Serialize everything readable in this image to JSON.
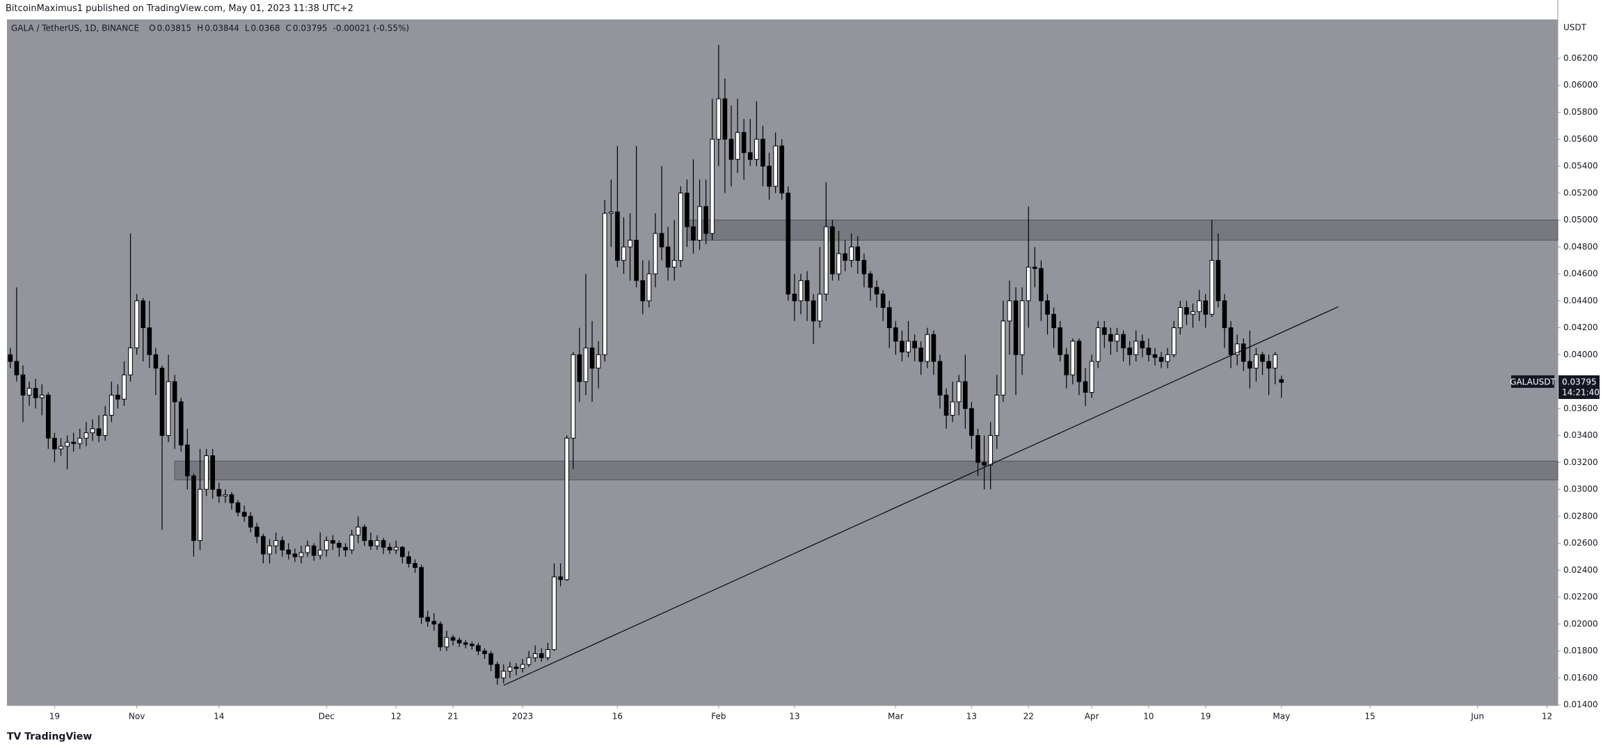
{
  "header": {
    "publisher": "BitcoinMaximus1 published on TradingView.com, May 01, 2023 11:38 UTC+2",
    "footer": "TradingView"
  },
  "chart_data": {
    "type": "candlestick",
    "title": "GALA / TetherUS, 1D, BINANCE",
    "ohlc_labels": [
      "O",
      "H",
      "L",
      "C"
    ],
    "change": "-0.00021 (-0.55%)",
    "y_axis_label": "USDT",
    "symbol": "GALAUSDT",
    "countdown": "14:21:40",
    "up_color": "#ffffff",
    "down_color": "#000000",
    "background": "#93959d",
    "ylim": [
      0.01395,
      0.06489
    ],
    "yticks": [
      {
        "value": 0.014,
        "label": "0.01400"
      },
      {
        "value": 0.016,
        "label": "0.01600"
      },
      {
        "value": 0.018,
        "label": "0.01800"
      },
      {
        "value": 0.02,
        "label": "0.02000"
      },
      {
        "value": 0.022,
        "label": "0.02200"
      },
      {
        "value": 0.024,
        "label": "0.02400"
      },
      {
        "value": 0.026,
        "label": "0.02600"
      },
      {
        "value": 0.028,
        "label": "0.02800"
      },
      {
        "value": 0.03,
        "label": "0.03000"
      },
      {
        "value": 0.032,
        "label": "0.03200"
      },
      {
        "value": 0.034,
        "label": "0.03400"
      },
      {
        "value": 0.036,
        "label": "0.03600"
      },
      {
        "value": 0.038,
        "label": "0.03800"
      },
      {
        "value": 0.04,
        "label": "0.04000"
      },
      {
        "value": 0.042,
        "label": "0.04200"
      },
      {
        "value": 0.044,
        "label": "0.04400"
      },
      {
        "value": 0.046,
        "label": "0.04600"
      },
      {
        "value": 0.048,
        "label": "0.04800"
      },
      {
        "value": 0.05,
        "label": "0.05000"
      },
      {
        "value": 0.052,
        "label": "0.05200"
      },
      {
        "value": 0.054,
        "label": "0.05400"
      },
      {
        "value": 0.056,
        "label": "0.05600"
      },
      {
        "value": 0.058,
        "label": "0.05800"
      },
      {
        "value": 0.06,
        "label": "0.06000"
      },
      {
        "value": 0.062,
        "label": "0.06200"
      }
    ],
    "xlim": [
      -0.53,
      244.7
    ],
    "xticks": [
      {
        "value": 7,
        "label": "19"
      },
      {
        "value": 20,
        "label": "Nov"
      },
      {
        "value": 33,
        "label": "14"
      },
      {
        "value": 50,
        "label": "Dec"
      },
      {
        "value": 61,
        "label": "12"
      },
      {
        "value": 70,
        "label": "21"
      },
      {
        "value": 81,
        "label": "2023"
      },
      {
        "value": 96,
        "label": "16"
      },
      {
        "value": 112,
        "label": "Feb"
      },
      {
        "value": 124,
        "label": "13"
      },
      {
        "value": 140,
        "label": "Mar"
      },
      {
        "value": 152,
        "label": "13"
      },
      {
        "value": 161,
        "label": "22"
      },
      {
        "value": 171,
        "label": "Apr"
      },
      {
        "value": 180,
        "label": "10"
      },
      {
        "value": 189,
        "label": "19"
      },
      {
        "value": 201,
        "label": "May"
      },
      {
        "value": 215,
        "label": "15"
      },
      {
        "value": 232,
        "label": "Jun"
      },
      {
        "value": 243,
        "label": "12"
      }
    ],
    "zones": [
      {
        "x0": 26,
        "y0": 0.0307,
        "y1": 0.0321
      },
      {
        "x0": 107,
        "y0": 0.0485,
        "y1": 0.05
      }
    ],
    "trendline": {
      "x": [
        78,
        210
      ],
      "y": [
        0.01545,
        0.04356
      ]
    },
    "ohlc": [
      [
        0.04,
        0.0405,
        0.039,
        0.0395
      ],
      [
        0.0395,
        0.045,
        0.038,
        0.0385
      ],
      [
        0.0385,
        0.0392,
        0.035,
        0.037
      ],
      [
        0.037,
        0.038,
        0.0362,
        0.0375
      ],
      [
        0.0375,
        0.0382,
        0.036,
        0.0368
      ],
      [
        0.0368,
        0.0378,
        0.0355,
        0.037
      ],
      [
        0.037,
        0.0372,
        0.033,
        0.0338
      ],
      [
        0.0338,
        0.0342,
        0.032,
        0.033
      ],
      [
        0.033,
        0.0338,
        0.0325,
        0.0332
      ],
      [
        0.0332,
        0.034,
        0.0315,
        0.0335
      ],
      [
        0.0335,
        0.0342,
        0.0328,
        0.0334
      ],
      [
        0.0334,
        0.0345,
        0.033,
        0.0338
      ],
      [
        0.0338,
        0.035,
        0.0332,
        0.0342
      ],
      [
        0.0342,
        0.0352,
        0.0336,
        0.0345
      ],
      [
        0.0345,
        0.0355,
        0.0335,
        0.034
      ],
      [
        0.034,
        0.0362,
        0.0336,
        0.0355
      ],
      [
        0.0355,
        0.038,
        0.035,
        0.037
      ],
      [
        0.037,
        0.0378,
        0.036,
        0.0367
      ],
      [
        0.0367,
        0.0395,
        0.0362,
        0.0385
      ],
      [
        0.0385,
        0.049,
        0.038,
        0.0405
      ],
      [
        0.0405,
        0.0445,
        0.04,
        0.044
      ],
      [
        0.044,
        0.0442,
        0.0395,
        0.042
      ],
      [
        0.042,
        0.044,
        0.039,
        0.04
      ],
      [
        0.04,
        0.0405,
        0.037,
        0.039
      ],
      [
        0.039,
        0.0392,
        0.027,
        0.034
      ],
      [
        0.034,
        0.04,
        0.0335,
        0.038
      ],
      [
        0.038,
        0.0385,
        0.033,
        0.0365
      ],
      [
        0.0365,
        0.0368,
        0.0328,
        0.0333
      ],
      [
        0.0333,
        0.0345,
        0.03,
        0.031
      ],
      [
        0.031,
        0.0312,
        0.025,
        0.0262
      ],
      [
        0.0262,
        0.033,
        0.0255,
        0.03
      ],
      [
        0.03,
        0.033,
        0.0295,
        0.0325
      ],
      [
        0.0325,
        0.033,
        0.0293,
        0.03
      ],
      [
        0.03,
        0.0305,
        0.029,
        0.0295
      ],
      [
        0.0295,
        0.03,
        0.029,
        0.0296
      ],
      [
        0.0296,
        0.0298,
        0.0285,
        0.029
      ],
      [
        0.029,
        0.0292,
        0.028,
        0.0283
      ],
      [
        0.0283,
        0.0288,
        0.0276,
        0.028
      ],
      [
        0.028,
        0.0283,
        0.0268,
        0.0272
      ],
      [
        0.0272,
        0.0275,
        0.026,
        0.0265
      ],
      [
        0.0265,
        0.0267,
        0.0245,
        0.0252
      ],
      [
        0.0252,
        0.0263,
        0.0245,
        0.0258
      ],
      [
        0.0258,
        0.0268,
        0.0252,
        0.0262
      ],
      [
        0.0262,
        0.0265,
        0.025,
        0.0255
      ],
      [
        0.0255,
        0.026,
        0.0248,
        0.0252
      ],
      [
        0.0252,
        0.0256,
        0.0246,
        0.025
      ],
      [
        0.025,
        0.0258,
        0.0245,
        0.0253
      ],
      [
        0.0253,
        0.0262,
        0.025,
        0.0258
      ],
      [
        0.0258,
        0.026,
        0.0247,
        0.0251
      ],
      [
        0.0251,
        0.0268,
        0.0248,
        0.0255
      ],
      [
        0.0255,
        0.0265,
        0.025,
        0.0262
      ],
      [
        0.0262,
        0.0266,
        0.0255,
        0.026
      ],
      [
        0.026,
        0.0262,
        0.025,
        0.0257
      ],
      [
        0.0257,
        0.026,
        0.025,
        0.0255
      ],
      [
        0.0255,
        0.027,
        0.0252,
        0.0266
      ],
      [
        0.0266,
        0.028,
        0.026,
        0.0272
      ],
      [
        0.0272,
        0.0274,
        0.0258,
        0.0262
      ],
      [
        0.0262,
        0.0268,
        0.0255,
        0.0258
      ],
      [
        0.0258,
        0.0266,
        0.0255,
        0.0262
      ],
      [
        0.0262,
        0.0264,
        0.0252,
        0.0257
      ],
      [
        0.0257,
        0.026,
        0.0252,
        0.0255
      ],
      [
        0.0255,
        0.0262,
        0.0252,
        0.0257
      ],
      [
        0.0257,
        0.0258,
        0.0245,
        0.025
      ],
      [
        0.025,
        0.0254,
        0.0242,
        0.0245
      ],
      [
        0.0245,
        0.0248,
        0.0238,
        0.0242
      ],
      [
        0.0242,
        0.0244,
        0.02,
        0.0205
      ],
      [
        0.0205,
        0.021,
        0.0198,
        0.0202
      ],
      [
        0.0202,
        0.0208,
        0.0195,
        0.02
      ],
      [
        0.02,
        0.0202,
        0.018,
        0.0183
      ],
      [
        0.0183,
        0.0195,
        0.018,
        0.019
      ],
      [
        0.019,
        0.0192,
        0.0184,
        0.0188
      ],
      [
        0.0188,
        0.019,
        0.0183,
        0.0186
      ],
      [
        0.0186,
        0.0188,
        0.0182,
        0.0185
      ],
      [
        0.0185,
        0.0187,
        0.0181,
        0.0184
      ],
      [
        0.0184,
        0.0186,
        0.0177,
        0.018
      ],
      [
        0.018,
        0.0182,
        0.0174,
        0.0178
      ],
      [
        0.0178,
        0.018,
        0.0165,
        0.017
      ],
      [
        0.017,
        0.0172,
        0.0155,
        0.016
      ],
      [
        0.016,
        0.017,
        0.0156,
        0.0165
      ],
      [
        0.0165,
        0.0172,
        0.016,
        0.0168
      ],
      [
        0.0168,
        0.0171,
        0.0162,
        0.0167
      ],
      [
        0.0167,
        0.0174,
        0.0164,
        0.017
      ],
      [
        0.017,
        0.018,
        0.0168,
        0.0175
      ],
      [
        0.0175,
        0.0184,
        0.0172,
        0.0178
      ],
      [
        0.0178,
        0.0182,
        0.0172,
        0.0175
      ],
      [
        0.0175,
        0.0186,
        0.0173,
        0.0181
      ],
      [
        0.0181,
        0.0245,
        0.018,
        0.0235
      ],
      [
        0.0235,
        0.0245,
        0.0228,
        0.0233
      ],
      [
        0.0233,
        0.034,
        0.0232,
        0.0338
      ],
      [
        0.0338,
        0.0402,
        0.0315,
        0.04
      ],
      [
        0.04,
        0.042,
        0.0365,
        0.038
      ],
      [
        0.038,
        0.046,
        0.037,
        0.0405
      ],
      [
        0.0405,
        0.0425,
        0.0365,
        0.039
      ],
      [
        0.039,
        0.041,
        0.0375,
        0.04
      ],
      [
        0.04,
        0.0515,
        0.0395,
        0.0505
      ],
      [
        0.0505,
        0.053,
        0.048,
        0.0506
      ],
      [
        0.0506,
        0.0555,
        0.0465,
        0.047
      ],
      [
        0.047,
        0.0502,
        0.046,
        0.048
      ],
      [
        0.048,
        0.0505,
        0.0455,
        0.0485
      ],
      [
        0.0485,
        0.0555,
        0.045,
        0.0455
      ],
      [
        0.0455,
        0.047,
        0.043,
        0.044
      ],
      [
        0.044,
        0.047,
        0.0435,
        0.046
      ],
      [
        0.046,
        0.0505,
        0.045,
        0.049
      ],
      [
        0.049,
        0.054,
        0.047,
        0.048
      ],
      [
        0.048,
        0.0495,
        0.0455,
        0.0465
      ],
      [
        0.0465,
        0.05,
        0.0455,
        0.047
      ],
      [
        0.047,
        0.0525,
        0.0465,
        0.052
      ],
      [
        0.052,
        0.053,
        0.048,
        0.0495
      ],
      [
        0.0495,
        0.0545,
        0.0475,
        0.0485
      ],
      [
        0.0485,
        0.053,
        0.0478,
        0.051
      ],
      [
        0.051,
        0.053,
        0.0482,
        0.049
      ],
      [
        0.049,
        0.059,
        0.0485,
        0.056
      ],
      [
        0.056,
        0.063,
        0.054,
        0.059
      ],
      [
        0.059,
        0.0605,
        0.052,
        0.056
      ],
      [
        0.056,
        0.0585,
        0.0525,
        0.0545
      ],
      [
        0.0545,
        0.059,
        0.0535,
        0.0565
      ],
      [
        0.0565,
        0.0575,
        0.053,
        0.055
      ],
      [
        0.055,
        0.0575,
        0.054,
        0.0545
      ],
      [
        0.0545,
        0.0588,
        0.054,
        0.056
      ],
      [
        0.056,
        0.057,
        0.0525,
        0.054
      ],
      [
        0.054,
        0.055,
        0.0515,
        0.0525
      ],
      [
        0.0525,
        0.0565,
        0.052,
        0.0555
      ],
      [
        0.0555,
        0.056,
        0.0515,
        0.052
      ],
      [
        0.052,
        0.0525,
        0.044,
        0.0445
      ],
      [
        0.0445,
        0.046,
        0.0425,
        0.044
      ],
      [
        0.044,
        0.046,
        0.043,
        0.0455
      ],
      [
        0.0455,
        0.0462,
        0.0425,
        0.044
      ],
      [
        0.044,
        0.0445,
        0.0408,
        0.0425
      ],
      [
        0.0425,
        0.048,
        0.042,
        0.0445
      ],
      [
        0.0445,
        0.0528,
        0.044,
        0.0495
      ],
      [
        0.0495,
        0.05,
        0.0455,
        0.046
      ],
      [
        0.046,
        0.0492,
        0.0455,
        0.0475
      ],
      [
        0.0475,
        0.0485,
        0.0462,
        0.047
      ],
      [
        0.047,
        0.049,
        0.0465,
        0.048
      ],
      [
        0.048,
        0.0488,
        0.046,
        0.047
      ],
      [
        0.047,
        0.0475,
        0.045,
        0.046
      ],
      [
        0.046,
        0.0462,
        0.044,
        0.045
      ],
      [
        0.045,
        0.0455,
        0.0435,
        0.0445
      ],
      [
        0.0445,
        0.0448,
        0.0425,
        0.0435
      ],
      [
        0.0435,
        0.044,
        0.0405,
        0.042
      ],
      [
        0.042,
        0.0425,
        0.04,
        0.041
      ],
      [
        0.041,
        0.0418,
        0.0395,
        0.0402
      ],
      [
        0.0402,
        0.0425,
        0.0398,
        0.041
      ],
      [
        0.041,
        0.0415,
        0.0395,
        0.0405
      ],
      [
        0.0405,
        0.041,
        0.0385,
        0.0395
      ],
      [
        0.0395,
        0.042,
        0.039,
        0.0415
      ],
      [
        0.0415,
        0.0418,
        0.0385,
        0.0395
      ],
      [
        0.0395,
        0.04,
        0.036,
        0.037
      ],
      [
        0.037,
        0.0375,
        0.0345,
        0.0355
      ],
      [
        0.0355,
        0.038,
        0.035,
        0.0365
      ],
      [
        0.0365,
        0.0385,
        0.0355,
        0.038
      ],
      [
        0.038,
        0.04,
        0.0345,
        0.036
      ],
      [
        0.036,
        0.0365,
        0.033,
        0.034
      ],
      [
        0.034,
        0.0345,
        0.031,
        0.032
      ],
      [
        0.032,
        0.034,
        0.03,
        0.0318
      ],
      [
        0.0318,
        0.035,
        0.03,
        0.034
      ],
      [
        0.034,
        0.0385,
        0.033,
        0.037
      ],
      [
        0.037,
        0.044,
        0.0365,
        0.0425
      ],
      [
        0.0425,
        0.0455,
        0.04,
        0.044
      ],
      [
        0.044,
        0.045,
        0.037,
        0.04
      ],
      [
        0.04,
        0.045,
        0.0385,
        0.044
      ],
      [
        0.044,
        0.051,
        0.042,
        0.0465
      ],
      [
        0.0465,
        0.048,
        0.045,
        0.0464
      ],
      [
        0.0464,
        0.047,
        0.0425,
        0.044
      ],
      [
        0.044,
        0.0445,
        0.0415,
        0.043
      ],
      [
        0.043,
        0.0435,
        0.0405,
        0.042
      ],
      [
        0.042,
        0.0425,
        0.0395,
        0.04
      ],
      [
        0.04,
        0.0405,
        0.0375,
        0.0385
      ],
      [
        0.0385,
        0.0412,
        0.0378,
        0.041
      ],
      [
        0.041,
        0.0412,
        0.037,
        0.038
      ],
      [
        0.038,
        0.039,
        0.0362,
        0.0372
      ],
      [
        0.0372,
        0.04,
        0.0368,
        0.0395
      ],
      [
        0.0395,
        0.0425,
        0.039,
        0.042
      ],
      [
        0.042,
        0.0425,
        0.0405,
        0.0415
      ],
      [
        0.0415,
        0.042,
        0.04,
        0.041
      ],
      [
        0.041,
        0.042,
        0.0402,
        0.0415
      ],
      [
        0.0415,
        0.0418,
        0.0395,
        0.0405
      ],
      [
        0.0405,
        0.041,
        0.0392,
        0.04
      ],
      [
        0.04,
        0.0418,
        0.0395,
        0.041
      ],
      [
        0.041,
        0.0415,
        0.0398,
        0.0405
      ],
      [
        0.0405,
        0.0412,
        0.0395,
        0.04
      ],
      [
        0.04,
        0.0405,
        0.0392,
        0.0398
      ],
      [
        0.0398,
        0.0402,
        0.039,
        0.0395
      ],
      [
        0.0395,
        0.0405,
        0.039,
        0.04
      ],
      [
        0.04,
        0.0425,
        0.0398,
        0.042
      ],
      [
        0.042,
        0.044,
        0.0415,
        0.0435
      ],
      [
        0.0435,
        0.044,
        0.0422,
        0.043
      ],
      [
        0.043,
        0.0438,
        0.042,
        0.0432
      ],
      [
        0.0432,
        0.0448,
        0.0425,
        0.044
      ],
      [
        0.044,
        0.0445,
        0.042,
        0.043
      ],
      [
        0.043,
        0.05,
        0.0428,
        0.047
      ],
      [
        0.047,
        0.049,
        0.0435,
        0.044
      ],
      [
        0.044,
        0.0445,
        0.0405,
        0.042
      ],
      [
        0.042,
        0.0425,
        0.039,
        0.04
      ],
      [
        0.04,
        0.0415,
        0.0392,
        0.0408
      ],
      [
        0.0408,
        0.0412,
        0.0388,
        0.0395
      ],
      [
        0.0395,
        0.0418,
        0.0375,
        0.039
      ],
      [
        0.039,
        0.0405,
        0.038,
        0.04
      ],
      [
        0.04,
        0.0402,
        0.0385,
        0.0395
      ],
      [
        0.0395,
        0.04,
        0.037,
        0.039
      ],
      [
        0.039,
        0.0402,
        0.0378,
        0.04
      ],
      [
        0.03815,
        0.03844,
        0.0368,
        0.03795
      ]
    ]
  }
}
